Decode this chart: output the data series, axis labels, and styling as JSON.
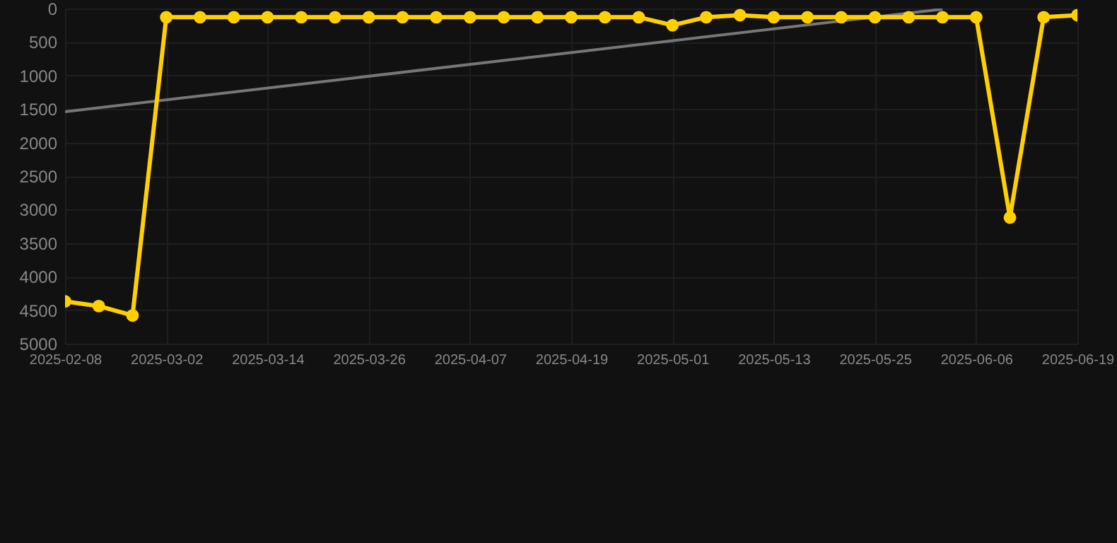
{
  "chart_data": {
    "type": "line",
    "categories": [
      "2025-02-08",
      null,
      null,
      "2025-03-02",
      null,
      null,
      "2025-03-14",
      null,
      null,
      "2025-03-26",
      null,
      null,
      "2025-04-07",
      null,
      null,
      "2025-04-19",
      null,
      null,
      "2025-05-01",
      null,
      null,
      "2025-05-13",
      null,
      null,
      "2025-05-25",
      null,
      null,
      "2025-06-06",
      null,
      null,
      "2025-06-19"
    ],
    "series": [
      {
        "type": "line",
        "color": "#777777",
        "marker": "none",
        "values": [
          1540,
          null,
          null,
          null,
          null,
          null,
          null,
          null,
          null,
          null,
          null,
          null,
          null,
          null,
          null,
          null,
          null,
          null,
          null,
          null,
          null,
          null,
          null,
          null,
          null,
          null,
          10,
          null,
          null,
          null,
          null
        ]
      },
      {
        "color": "#ffd000",
        "marker": "circle",
        "values": [
          4370,
          4440,
          4580,
          130,
          130,
          130,
          130,
          130,
          130,
          130,
          130,
          130,
          130,
          130,
          130,
          130,
          130,
          130,
          250,
          130,
          100,
          130,
          130,
          130,
          130,
          130,
          130,
          130,
          3120,
          130,
          100
        ]
      }
    ],
    "ylim": [
      5000,
      0
    ],
    "yticks": [
      0,
      500,
      1000,
      1500,
      2000,
      2500,
      3000,
      3500,
      4000,
      4500,
      5000
    ],
    "grid": true,
    "legend": false
  }
}
